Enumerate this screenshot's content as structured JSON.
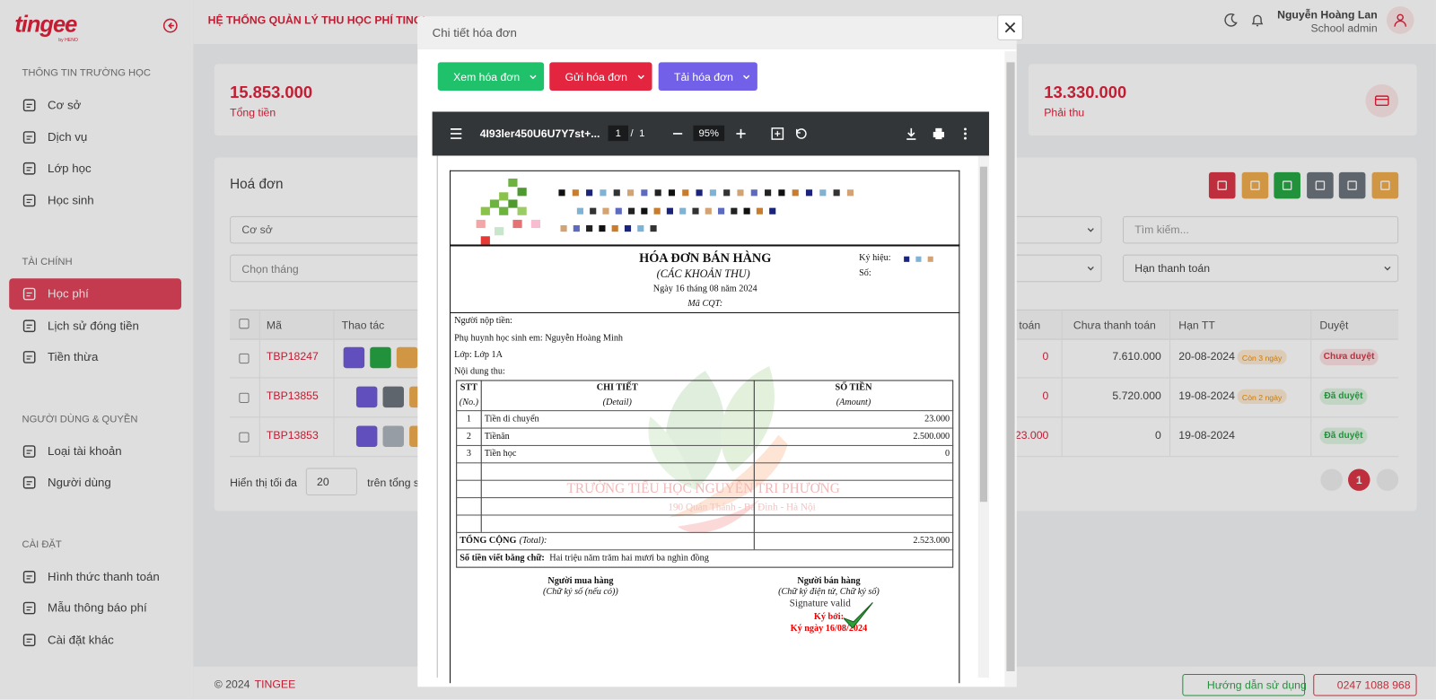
{
  "sidebar": {
    "logo": "tingee",
    "logo_by": "by HENO",
    "sections": [
      {
        "title": "THÔNG TIN TRƯỜNG HỌC",
        "items": [
          "Cơ sở",
          "Dịch vụ",
          "Lớp học",
          "Học sinh"
        ]
      },
      {
        "title": "TÀI CHÍNH",
        "items": [
          "Học phí",
          "Lịch sử đóng tiền",
          "Tiền thừa"
        ]
      },
      {
        "title": "NGƯỜI DÙNG & QUYỀN",
        "items": [
          "Loại tài khoản",
          "Người dùng"
        ]
      },
      {
        "title": "CÀI ĐẶT",
        "items": [
          "Hình thức thanh toán",
          "Mẫu thông báo phí",
          "Cài đặt khác"
        ]
      }
    ]
  },
  "header": {
    "title": "HỆ THỐNG QUẢN LÝ THU HỌC PHÍ TINGI",
    "user_name": "Nguyễn Hoàng Lan",
    "user_role": "School admin"
  },
  "stats": [
    {
      "value": "15.853.000",
      "label": "Tổng tiền"
    },
    {
      "value": "13.330.000",
      "label": "Phải thu"
    }
  ],
  "invoices": {
    "title": "Hoá đơn",
    "filters": {
      "facility": "Cơ sở",
      "month": "Chọn tháng",
      "search": "Tìm kiếm...",
      "due": "Hạn thanh toán"
    },
    "columns": {
      "code": "Mã",
      "actions": "Thao tác",
      "paid": "toán",
      "unpaid": "Chưa thanh toán",
      "due": "Hạn TT",
      "status": "Duyệt"
    },
    "rows": [
      {
        "code": "TBP18247",
        "paid": "0",
        "unpaid": "7.610.000",
        "due": "20-08-2024",
        "remaining": "Còn 3 ngày",
        "status": "Chưa duyệt"
      },
      {
        "code": "TBP13855",
        "paid": "0",
        "unpaid": "5.720.000",
        "due": "19-08-2024",
        "remaining": "Còn 2 ngày",
        "status": "Đã duyệt"
      },
      {
        "code": "TBP13853",
        "paid": "23.000",
        "unpaid": "0",
        "due": "19-08-2024",
        "status": "Đã duyệt"
      }
    ],
    "show_label": "Hiển thị tối đa",
    "page_size": "20",
    "total_label": "trên tổng s",
    "page": "1"
  },
  "footer": {
    "copyright": "© 2024",
    "brand": "TINGEE",
    "guide": "Hướng dẫn sử dụng",
    "phone": "0247 1088 968"
  },
  "modal": {
    "title": "Chi tiết hóa đơn",
    "buttons": {
      "view": "Xem hóa đơn",
      "send": "Gửi hóa đơn",
      "download": "Tải hóa đơn"
    },
    "viewer": {
      "file": "4I93ler450U6U7Y7st+...",
      "page": "1",
      "separator": "/",
      "pages": "1",
      "zoom": "95%"
    },
    "doc": {
      "title": "HÓA ĐƠN BÁN HÀNG",
      "subtitle": "(CÁC KHOẢN THU)",
      "date": "Ngày 16 tháng 08 năm 2024",
      "tax_code": "Mã CQT:",
      "symbol": "Ký hiệu:",
      "number": "Số:",
      "payer": "Người nộp tiền:",
      "parent": "Phụ huynh học sinh em: Nguyễn Hoàng Minh",
      "class": "Lớp: Lớp 1A",
      "content": "Nội dung thu:",
      "headers": [
        [
          "STT",
          "(No.)"
        ],
        [
          "CHI TIẾT",
          "(Detail)"
        ],
        [
          "SỐ TIỀN",
          "(Amount)"
        ]
      ],
      "rows": [
        [
          "1",
          "Tiền di chuyển",
          "23.000"
        ],
        [
          "2",
          "Tiềnăn",
          "2.500.000"
        ],
        [
          "3",
          "Tiền học",
          "0"
        ]
      ],
      "total_label": "TỔNG CỘNG",
      "total_label_en": "(Total):",
      "total": "2.523.000",
      "words_label": "Số tiền viết bằng chữ:",
      "words": "Hai triệu năm trăm hai mươi ba nghìn đồng",
      "buyer": "Người mua hàng",
      "buyer_note": "(Chữ ký số (nếu có))",
      "seller": "Người bán hàng",
      "seller_note": "(Chữ ký điện tử, Chữ ký số)",
      "signature": "Signature valid",
      "signed_by": "Ký bởi:",
      "signed_date": "Ký ngày 16/08/2024",
      "watermark_name": "TRƯỜNG TIỂU HỌC NGUYỄN TRI PHƯƠNG",
      "watermark_address": "190 Quán Thánh - Ba Đình - Hà Nội"
    }
  }
}
